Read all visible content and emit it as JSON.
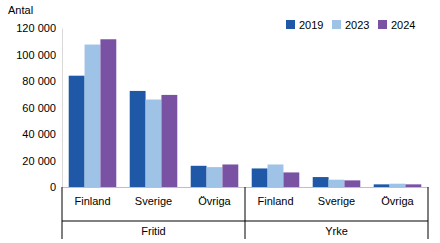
{
  "chart_data": {
    "type": "bar",
    "y_label": "Antal",
    "categories": [
      "Finland",
      "Sverige",
      "Övriga",
      "Finland",
      "Sverige",
      "Övriga"
    ],
    "category_groups": [
      "Fritid",
      "Fritid",
      "Fritid",
      "Yrke",
      "Yrke",
      "Yrke"
    ],
    "series": [
      {
        "name": "2019",
        "color": "#1f58a6",
        "values": [
          84000,
          72500,
          16000,
          14000,
          7500,
          2000
        ]
      },
      {
        "name": "2023",
        "color": "#9fc2e7",
        "values": [
          107500,
          66000,
          15000,
          17000,
          5500,
          2500
        ]
      },
      {
        "name": "2024",
        "color": "#7a52a3",
        "values": [
          111500,
          69500,
          17000,
          11000,
          5000,
          2000
        ]
      }
    ],
    "ylim": [
      0,
      120000
    ],
    "yticks": [
      0,
      {
        "value": 20000,
        "label": "20 000"
      },
      {
        "value": 40000,
        "label": "40 000"
      },
      {
        "value": 60000,
        "label": "60 000"
      },
      {
        "value": 80000,
        "label": "80 000"
      },
      {
        "value": 100000,
        "label": "100 000"
      },
      {
        "value": 120000,
        "label": "120 000"
      }
    ],
    "grid": false,
    "legend": "upper right"
  }
}
